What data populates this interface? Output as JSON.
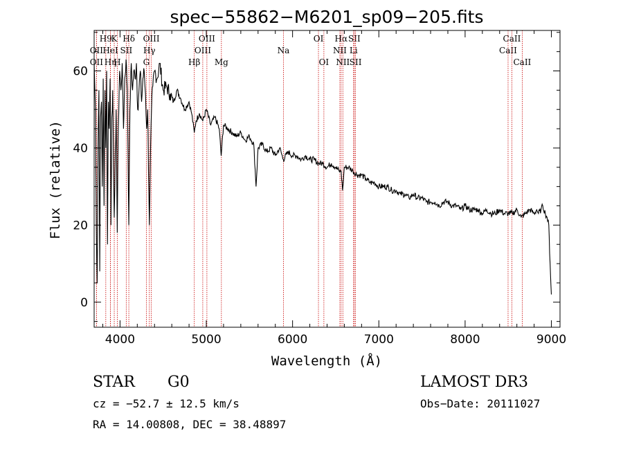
{
  "chart_data": {
    "type": "line",
    "title": "spec−55862−M6201_sp09−205.fits",
    "xlabel": "Wavelength (Å)",
    "ylabel": "Flux (relative)",
    "xlim": [
      3700,
      9100
    ],
    "ylim": [
      -6.5,
      70.5
    ],
    "x_ticks": [
      4000,
      5000,
      6000,
      7000,
      8000,
      9000
    ],
    "y_ticks": [
      0,
      20,
      40,
      60
    ],
    "x_tick_labels": [
      "4000",
      "5000",
      "6000",
      "7000",
      "8000",
      "9000"
    ],
    "y_tick_labels": [
      "0",
      "20",
      "40",
      "60"
    ],
    "series": [
      {
        "name": "spectrum",
        "x": [
          3700,
          3715,
          3725,
          3735,
          3745,
          3755,
          3765,
          3775,
          3785,
          3795,
          3805,
          3815,
          3825,
          3835,
          3845,
          3855,
          3865,
          3875,
          3885,
          3895,
          3905,
          3915,
          3925,
          3933,
          3940,
          3955,
          3968,
          3980,
          3995,
          4010,
          4025,
          4040,
          4055,
          4070,
          4085,
          4102,
          4115,
          4130,
          4145,
          4160,
          4175,
          4190,
          4205,
          4220,
          4235,
          4250,
          4265,
          4280,
          4295,
          4308,
          4320,
          4335,
          4340,
          4350,
          4365,
          4380,
          4400,
          4430,
          4460,
          4500,
          4540,
          4580,
          4620,
          4660,
          4700,
          4750,
          4800,
          4830,
          4861,
          4880,
          4920,
          4960,
          5000,
          5050,
          5100,
          5150,
          5172,
          5200,
          5250,
          5300,
          5350,
          5400,
          5450,
          5500,
          5550,
          5577,
          5600,
          5650,
          5700,
          5750,
          5800,
          5850,
          5893,
          5950,
          6000,
          6050,
          6100,
          6150,
          6200,
          6250,
          6300,
          6350,
          6400,
          6450,
          6500,
          6540,
          6563,
          6580,
          6600,
          6650,
          6700,
          6750,
          6800,
          6850,
          6900,
          6950,
          7000,
          7050,
          7100,
          7150,
          7200,
          7250,
          7300,
          7350,
          7400,
          7450,
          7500,
          7550,
          7600,
          7650,
          7700,
          7750,
          7800,
          7850,
          7900,
          7950,
          8000,
          8050,
          8100,
          8150,
          8200,
          8250,
          8300,
          8350,
          8400,
          8450,
          8500,
          8550,
          8600,
          8650,
          8700,
          8750,
          8800,
          8830,
          8850,
          8880,
          8900,
          8930,
          8950,
          8970,
          8985,
          9000
        ],
        "y": [
          62,
          50,
          20,
          5,
          40,
          55,
          8,
          48,
          52,
          30,
          58,
          25,
          55,
          40,
          60,
          15,
          52,
          45,
          58,
          20,
          48,
          55,
          35,
          22,
          30,
          50,
          18,
          45,
          60,
          55,
          62,
          45,
          58,
          63,
          55,
          20,
          50,
          62,
          55,
          60,
          58,
          62,
          50,
          55,
          60,
          52,
          58,
          60,
          54,
          45,
          50,
          28,
          20,
          35,
          50,
          56,
          60,
          58,
          62,
          55,
          56,
          54,
          52,
          55,
          53,
          50,
          52,
          49,
          44,
          47,
          49,
          47,
          50,
          46,
          48,
          45,
          38,
          46,
          45,
          44,
          43,
          44,
          42,
          43,
          41,
          30,
          40,
          41,
          39,
          40,
          38,
          40,
          37,
          39,
          38,
          38,
          37,
          38,
          37,
          37,
          36,
          36,
          35,
          36,
          35,
          34,
          34,
          29,
          35,
          35,
          34,
          33,
          33,
          32,
          31,
          31,
          30,
          30,
          30,
          29,
          29,
          28,
          28,
          27,
          28,
          27,
          27,
          26,
          26,
          26,
          25,
          26,
          26,
          25,
          25,
          24,
          25,
          24,
          24,
          24,
          23,
          24,
          23,
          23,
          24,
          23,
          23,
          23,
          24,
          22,
          23,
          24,
          23,
          24,
          23,
          24,
          25,
          23,
          22,
          20,
          10,
          2
        ]
      }
    ],
    "line_markers": [
      {
        "name": "OII",
        "wavelength": 3727,
        "row": 2
      },
      {
        "name": "OII",
        "wavelength": 3727,
        "row": 3
      },
      {
        "name": "H9",
        "wavelength": 3835,
        "row": 1
      },
      {
        "name": "Hη",
        "wavelength": 3889,
        "row": 3
      },
      {
        "name": "HeI",
        "wavelength": 3889,
        "row": 2
      },
      {
        "name": "K",
        "wavelength": 3933,
        "row": 1
      },
      {
        "name": "H",
        "wavelength": 3968,
        "row": 3
      },
      {
        "name": "SII",
        "wavelength": 4072,
        "row": 2
      },
      {
        "name": "Hδ",
        "wavelength": 4102,
        "row": 1
      },
      {
        "name": "G",
        "wavelength": 4305,
        "row": 3
      },
      {
        "name": "Hγ",
        "wavelength": 4340,
        "row": 2
      },
      {
        "name": "OIII",
        "wavelength": 4363,
        "row": 1
      },
      {
        "name": "Hβ",
        "wavelength": 4861,
        "row": 3
      },
      {
        "name": "OIII",
        "wavelength": 4959,
        "row": 2
      },
      {
        "name": "OIII",
        "wavelength": 5007,
        "row": 1
      },
      {
        "name": "Mg",
        "wavelength": 5175,
        "row": 3
      },
      {
        "name": "Na",
        "wavelength": 5894,
        "row": 2
      },
      {
        "name": "OI",
        "wavelength": 6300,
        "row": 1
      },
      {
        "name": "OI",
        "wavelength": 6363,
        "row": 3
      },
      {
        "name": "NII",
        "wavelength": 6548,
        "row": 2
      },
      {
        "name": "Hα",
        "wavelength": 6563,
        "row": 1
      },
      {
        "name": "NII",
        "wavelength": 6583,
        "row": 3
      },
      {
        "name": "Li",
        "wavelength": 6707,
        "row": 2
      },
      {
        "name": "SII",
        "wavelength": 6716,
        "row": 1
      },
      {
        "name": "SII",
        "wavelength": 6730,
        "row": 3
      },
      {
        "name": "CaII",
        "wavelength": 8498,
        "row": 2
      },
      {
        "name": "CaII",
        "wavelength": 8542,
        "row": 1
      },
      {
        "name": "CaII",
        "wavelength": 8662,
        "row": 3
      }
    ]
  },
  "info": {
    "class_label": "STAR",
    "subclass": "G0",
    "survey": "LAMOST DR3",
    "cz": "cz = −52.7 ± 12.5 km/s",
    "obs_date": "Obs−Date: 20111027",
    "radec": "RA =  14.00808, DEC =  38.48897"
  },
  "colors": {
    "spectrum": "#000000",
    "marker": "#c80000",
    "axis": "#000000"
  }
}
